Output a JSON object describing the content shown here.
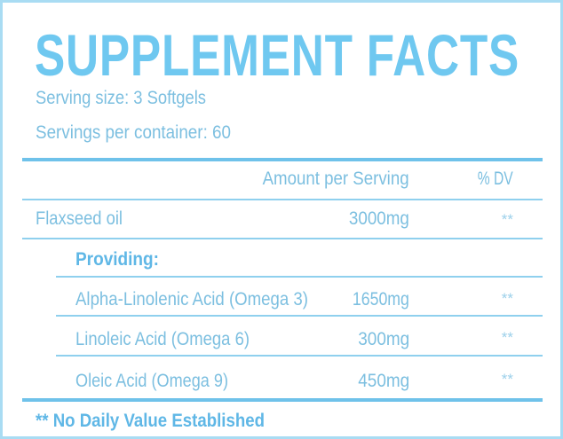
{
  "title": "SUPPLEMENT FACTS",
  "serving_size": "Serving size: 3 Softgels",
  "servings_per_container": "Servings per container: 60",
  "header": {
    "amount": "Amount per Serving",
    "dv": "% DV"
  },
  "main_row": {
    "name": "Flaxseed oil",
    "amount": "3000mg",
    "dv": "**"
  },
  "providing_label": "Providing:",
  "sub_rows": [
    {
      "name": "Alpha-Linolenic Acid (Omega 3)",
      "amount": "1650mg",
      "dv": "**"
    },
    {
      "name": "Linoleic Acid (Omega 6)",
      "amount": "300mg",
      "dv": "**"
    },
    {
      "name": "Oleic Acid (Omega 9)",
      "amount": "450mg",
      "dv": "**"
    }
  ],
  "footnote": "** No Daily Value Established",
  "colors": {
    "title": "#6fc8f0",
    "text": "#7cbfe0",
    "rule": "#8fd0ee"
  }
}
